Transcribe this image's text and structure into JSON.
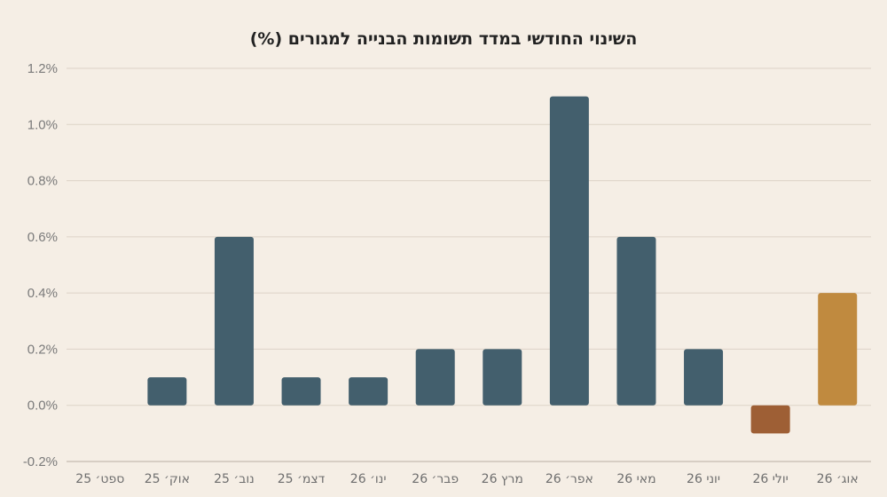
{
  "chart_data": {
    "type": "bar",
    "title": "השינוי החודשי במדד תשומות הבנייה למגורים (%)",
    "xlabel": "",
    "ylabel": "",
    "ylim": [
      -0.2,
      1.2
    ],
    "yticks": [
      -0.2,
      0.0,
      0.2,
      0.4,
      0.6,
      0.8,
      1.0,
      1.2
    ],
    "ytick_labels": [
      "-0.2%",
      "0.0%",
      "0.2%",
      "0.4%",
      "0.6%",
      "0.8%",
      "1.0%",
      "1.2%"
    ],
    "grid": true,
    "legend": "none",
    "categories": [
      "ספט׳ 25",
      "אוק׳ 25",
      "נוב׳ 25",
      "דצמ׳ 25",
      "ינו׳ 26",
      "פבר׳ 26",
      "מרץ 26",
      "אפר׳ 26",
      "מאי 26",
      "יוני 26",
      "יולי 26",
      "אוג׳ 26"
    ],
    "values": [
      0.0,
      0.1,
      0.6,
      0.1,
      0.1,
      0.2,
      0.2,
      1.1,
      0.6,
      0.2,
      -0.1,
      0.4
    ],
    "colors": [
      "#435f6d",
      "#435f6d",
      "#435f6d",
      "#435f6d",
      "#435f6d",
      "#435f6d",
      "#435f6d",
      "#435f6d",
      "#435f6d",
      "#435f6d",
      "#9e5f35",
      "#c08a3f"
    ]
  }
}
